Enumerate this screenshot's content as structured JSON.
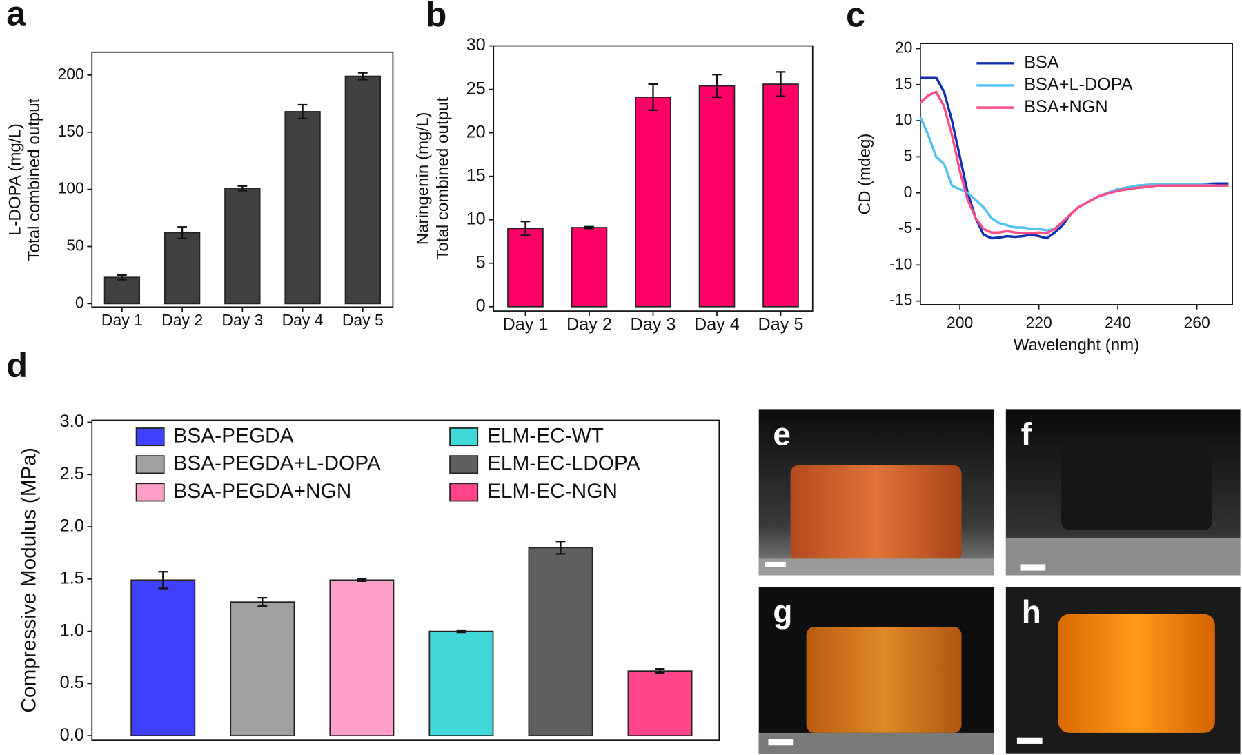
{
  "chart_data": [
    {
      "type": "bar",
      "panel": "a",
      "ylabel": [
        "L-DOPA (mg/L)",
        "Total combined output"
      ],
      "categories": [
        "Day 1",
        "Day 2",
        "Day 3",
        "Day 4",
        "Day 5"
      ],
      "values": [
        23,
        62,
        101,
        168,
        199
      ],
      "errors": [
        2,
        5,
        2,
        6,
        3
      ],
      "color": "#404040",
      "ylim": [
        -3,
        220
      ],
      "yticks": [
        0,
        50,
        100,
        150,
        200
      ]
    },
    {
      "type": "bar",
      "panel": "b",
      "ylabel": [
        "Naringenin (mg/L)",
        "Total combined output"
      ],
      "categories": [
        "Day 1",
        "Day 2",
        "Day 3",
        "Day 4",
        "Day 5"
      ],
      "values": [
        9.0,
        9.1,
        24.1,
        25.4,
        25.6
      ],
      "errors": [
        0.8,
        0.1,
        1.5,
        1.3,
        1.4
      ],
      "color": "#ff0066",
      "ylim": [
        -0.5,
        30
      ],
      "yticks": [
        0,
        5,
        10,
        15,
        20,
        25,
        30
      ]
    },
    {
      "type": "line",
      "panel": "c",
      "xlabel": "Wavelenght (nm)",
      "ylabel": [
        "CD (mdeg)"
      ],
      "x": [
        190,
        192,
        194,
        196,
        198,
        200,
        202,
        204,
        206,
        208,
        210,
        212,
        214,
        216,
        218,
        220,
        222,
        224,
        226,
        228,
        230,
        235,
        240,
        245,
        250,
        255,
        260,
        265,
        268
      ],
      "series": [
        {
          "name": "BSA",
          "color": "#1030b0",
          "values": [
            16,
            16,
            16,
            14,
            10,
            5,
            0,
            -3.5,
            -5.8,
            -6.3,
            -6.2,
            -6.0,
            -6.1,
            -6.0,
            -5.8,
            -6.0,
            -6.3,
            -5.5,
            -4.5,
            -3,
            -2,
            -0.5,
            0.5,
            1,
            1.2,
            1.0,
            1.2,
            1.3,
            1.3
          ]
        },
        {
          "name": "BSA+L-DOPA",
          "color": "#4fc3f7",
          "values": [
            10.5,
            8,
            5,
            4,
            1,
            0.5,
            0,
            -1,
            -2,
            -3.5,
            -4.2,
            -4.5,
            -4.8,
            -4.8,
            -5,
            -5,
            -5.2,
            -5,
            -4,
            -3,
            -2,
            -0.5,
            0.5,
            1,
            1.2,
            1.2,
            1.2,
            1.0,
            1.0
          ]
        },
        {
          "name": "BSA+NGN",
          "color": "#ff4d88",
          "values": [
            12.5,
            13.5,
            14,
            12,
            8,
            3,
            -1,
            -3.5,
            -5,
            -5.5,
            -5.5,
            -5.3,
            -5.5,
            -5.6,
            -5.6,
            -5.5,
            -5.6,
            -5,
            -4,
            -3,
            -2,
            -0.5,
            0.3,
            0.7,
            1,
            1,
            1,
            1,
            1
          ]
        }
      ],
      "xlim": [
        190,
        269
      ],
      "xticks": [
        200,
        220,
        240,
        260
      ],
      "ylim": [
        -15.5,
        20.7
      ],
      "yticks": [
        -15,
        -10,
        -5,
        0,
        5,
        10,
        15,
        20
      ],
      "legend": "top-left"
    },
    {
      "type": "bar",
      "panel": "d",
      "ylabel": [
        "Compressive Modulus (MPa)"
      ],
      "categories": [
        "BSA-PEGDA",
        "BSA-PEGDA+L-DOPA",
        "BSA-PEGDA+NGN",
        "ELM-EC-WT",
        "ELM-EC-LDOPA",
        "ELM-EC-NGN"
      ],
      "values": [
        1.49,
        1.28,
        1.49,
        1.0,
        1.8,
        0.62
      ],
      "errors": [
        0.08,
        0.04,
        0.01,
        0.01,
        0.06,
        0.02
      ],
      "colors": [
        "#4040ff",
        "#a0a0a0",
        "#ffa0c8",
        "#40d8d8",
        "#606060",
        "#ff4488"
      ],
      "ylim": [
        -0.04,
        3.02
      ],
      "yticks": [
        {
          "value": 0,
          "label": "0.0"
        },
        0.5,
        {
          "value": 1,
          "label": "1.0"
        },
        1.5,
        {
          "value": 2,
          "label": "2.0"
        },
        2.5,
        {
          "value": 3,
          "label": "3.0"
        }
      ],
      "legend": "top-left"
    }
  ],
  "photos": [
    {
      "label": "e"
    },
    {
      "label": "f"
    },
    {
      "label": "g"
    },
    {
      "label": "h"
    }
  ]
}
